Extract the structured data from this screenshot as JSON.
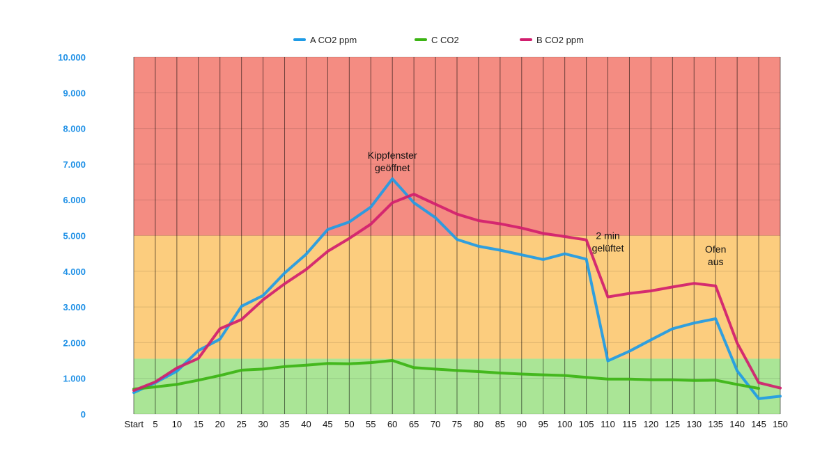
{
  "chart_data": {
    "type": "line",
    "categories": [
      "Start",
      "5",
      "10",
      "15",
      "20",
      "25",
      "30",
      "35",
      "40",
      "45",
      "50",
      "55",
      "60",
      "65",
      "70",
      "75",
      "80",
      "85",
      "90",
      "95",
      "100",
      "105",
      "110",
      "115",
      "120",
      "125",
      "130",
      "135",
      "140",
      "145",
      "150"
    ],
    "ylim": [
      0,
      10000
    ],
    "yticks": [
      {
        "value": 0,
        "label": "0"
      },
      {
        "value": 1000,
        "label": "1.000"
      },
      {
        "value": 2000,
        "label": "2.000"
      },
      {
        "value": 3000,
        "label": "3.000"
      },
      {
        "value": 4000,
        "label": "4.000"
      },
      {
        "value": 5000,
        "label": "5.000"
      },
      {
        "value": 6000,
        "label": "6.000"
      },
      {
        "value": 7000,
        "label": "7.000"
      },
      {
        "value": 8000,
        "label": "8.000"
      },
      {
        "value": 9000,
        "label": "9.000"
      },
      {
        "value": 10000,
        "label": "10.000"
      }
    ],
    "bands": [
      {
        "from": 5000,
        "to": 10000,
        "color": "#f48c82"
      },
      {
        "from": 1550,
        "to": 5000,
        "color": "#fccd7e"
      },
      {
        "from": 0,
        "to": 1550,
        "color": "#aae596"
      }
    ],
    "grid": true,
    "legend_position": "top",
    "series": [
      {
        "name": "A CO2 ppm",
        "color": "#1e9be6",
        "values": [
          600,
          880,
          1200,
          1780,
          2100,
          3020,
          3320,
          3950,
          4480,
          5170,
          5380,
          5800,
          6590,
          5920,
          5500,
          4890,
          4700,
          4590,
          4460,
          4330,
          4490,
          4340,
          1490,
          1760,
          2080,
          2390,
          2550,
          2670,
          1210,
          430,
          500
        ]
      },
      {
        "name": "C CO2",
        "color": "#3cb414",
        "values": [
          700,
          760,
          830,
          950,
          1080,
          1230,
          1260,
          1330,
          1370,
          1420,
          1410,
          1440,
          1500,
          1300,
          1260,
          1220,
          1190,
          1150,
          1120,
          1100,
          1080,
          1030,
          980,
          980,
          960,
          960,
          940,
          950,
          830,
          720,
          null
        ]
      },
      {
        "name": "B CO2 ppm",
        "color": "#d11e6e",
        "values": [
          660,
          900,
          1290,
          1560,
          2390,
          2650,
          3200,
          3650,
          4050,
          4560,
          4920,
          5320,
          5920,
          6160,
          5880,
          5600,
          5420,
          5330,
          5210,
          5060,
          4970,
          4880,
          3280,
          3380,
          3450,
          3560,
          3660,
          3590,
          1990,
          880,
          730
        ]
      }
    ],
    "annotations": [
      {
        "text": [
          "Kippfenster",
          "geöffnet"
        ],
        "x": "60",
        "y": 7150
      },
      {
        "text": [
          "2 min",
          "gelüftet"
        ],
        "x": "110",
        "y": 4900
      },
      {
        "text": [
          "Ofen",
          "aus"
        ],
        "x": "135",
        "y": 4520
      }
    ]
  }
}
